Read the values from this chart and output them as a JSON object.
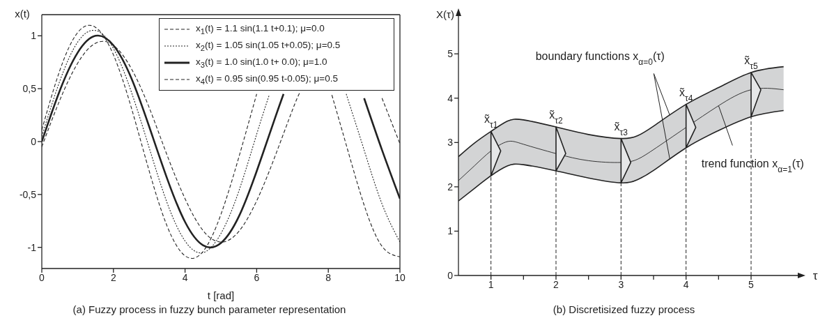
{
  "chart_data": [
    {
      "type": "line",
      "title": "(a) Fuzzy process in fuzzy bunch parameter representation",
      "xlabel": "t [rad]",
      "ylabel": "x(t)",
      "xlim": [
        0,
        10
      ],
      "xticks": [
        0,
        2,
        4,
        6,
        8,
        10
      ],
      "ylim": [
        -1.2,
        1.2
      ],
      "yticks": [
        -1,
        {
          "value": -0.5,
          "label": "-0,5"
        },
        0,
        {
          "value": 0.5,
          "label": "0,5"
        },
        1
      ],
      "legend": "top right",
      "series": [
        {
          "name": "x$_{1}$(t) = 1.1 sin(1.1 t+0.1); μ=0.0",
          "color": "#222222",
          "line_style": "dashed",
          "x": [
            0,
            0.5,
            1,
            1.5,
            2,
            2.5,
            3,
            3.5,
            4,
            4.5,
            5,
            5.5,
            6,
            7,
            8.1,
            8.5,
            9,
            9.5,
            10
          ],
          "values": [
            0.11,
            0.67,
            1.03,
            1.08,
            0.82,
            0.32,
            -0.28,
            -0.8,
            -1.08,
            -1.04,
            -0.69,
            -0.15,
            0.45,
            null,
            0.44,
            -0.03,
            -0.6,
            -0.99,
            -1.09
          ]
        },
        {
          "name": "x$_{2}$(t) = 1.05 sin(1.05 t+0.05); μ=0.5",
          "color": "#222222",
          "line_style": "dotted",
          "x": [
            0,
            0.5,
            1,
            1.5,
            2,
            2.5,
            3,
            3.5,
            4,
            4.5,
            5,
            5.5,
            6,
            6.35,
            7.5,
            8.5,
            9,
            9.5,
            10
          ],
          "values": [
            0.05,
            0.57,
            0.94,
            1.05,
            0.88,
            0.47,
            -0.06,
            -0.58,
            -0.94,
            -1.05,
            -0.87,
            -0.47,
            0.07,
            0.44,
            null,
            0.45,
            -0.08,
            -0.59,
            -0.95
          ]
        },
        {
          "name": "x$_{3}$(t) = 1.0 sin(1.0 t+ 0.0); μ=1.0",
          "color": "#222222",
          "line_style": "solid",
          "x": [
            0,
            0.5,
            1,
            1.5,
            2,
            2.5,
            3,
            3.5,
            4,
            4.5,
            5,
            5.5,
            6,
            6.5,
            6.75,
            7.75,
            9,
            9.5,
            10
          ],
          "values": [
            0,
            0.48,
            0.84,
            1.0,
            0.91,
            0.6,
            0.14,
            -0.35,
            -0.76,
            -0.98,
            -0.96,
            -0.71,
            -0.28,
            0.21,
            0.45,
            null,
            0.41,
            -0.08,
            -0.54
          ]
        },
        {
          "name": "x$_{4}$(t) = 0.95 sin(0.95 t-0.05); μ=0.5",
          "color": "#222222",
          "line_style": "dashed",
          "x": [
            0,
            0.5,
            1,
            1.5,
            2,
            2.5,
            3,
            3.5,
            4,
            4.5,
            5,
            5.5,
            6,
            6.5,
            7,
            7.2,
            8,
            9.5,
            10
          ],
          "values": [
            -0.05,
            0.39,
            0.74,
            0.93,
            0.91,
            0.69,
            0.32,
            -0.13,
            -0.54,
            -0.84,
            -0.95,
            -0.85,
            -0.56,
            -0.15,
            0.3,
            0.46,
            null,
            0.41,
            -0.02
          ]
        }
      ]
    },
    {
      "type": "line",
      "title": "(b) Discretisized fuzzy process",
      "xlabel": "τ",
      "ylabel": "X(τ)",
      "xlim": [
        0.5,
        5.75
      ],
      "xticks": [
        1,
        {
          "value": 1.5,
          "label": null
        },
        2,
        {
          "value": 2.5,
          "label": null
        },
        3,
        {
          "value": 3.5,
          "label": null
        },
        4,
        {
          "value": 4.5,
          "label": null
        },
        5
      ],
      "ylim": [
        0,
        5.9
      ],
      "yticks": [
        0,
        1,
        2,
        3,
        4,
        5
      ],
      "series": [
        {
          "color": "#222222",
          "x": [
            0.5,
            0.75,
            1,
            1.25,
            1.5,
            2,
            2.5,
            3,
            3.25,
            3.5,
            4,
            4.5,
            5,
            5.5
          ],
          "values": [
            2.14,
            2.48,
            2.81,
            3.02,
            2.96,
            2.75,
            2.59,
            2.55,
            2.62,
            2.84,
            3.34,
            3.83,
            4.19,
            4.19
          ],
          "lower": [
            1.68,
            1.97,
            2.25,
            2.47,
            2.5,
            2.36,
            2.2,
            2.09,
            2.16,
            2.37,
            2.88,
            3.27,
            3.58,
            3.72
          ],
          "upper": [
            2.68,
            2.99,
            3.25,
            3.48,
            3.51,
            3.35,
            3.18,
            3.09,
            3.15,
            3.37,
            3.86,
            4.24,
            4.58,
            4.71
          ]
        },
        {
          "color": "#222222",
          "x": [
            0.5,
            0.75,
            1,
            1.25,
            1.5,
            2,
            2.5,
            3,
            3.25,
            3.5,
            4,
            4.5,
            5,
            5.5
          ],
          "values": [
            2.68,
            2.99,
            3.25,
            3.48,
            3.51,
            3.35,
            3.18,
            3.09,
            3.15,
            3.37,
            3.86,
            4.24,
            4.58,
            4.71
          ]
        },
        {
          "color": "#222222",
          "x": [
            0.5,
            0.75,
            1,
            1.25,
            1.5,
            2,
            2.5,
            3,
            3.25,
            3.5,
            4,
            4.5,
            5,
            5.5
          ],
          "values": [
            1.68,
            1.97,
            2.25,
            2.47,
            2.5,
            2.36,
            2.2,
            2.09,
            2.16,
            2.37,
            2.88,
            3.27,
            3.58,
            3.72
          ]
        }
      ],
      "ref_lines": [
        {
          "axis": "x",
          "value": 1,
          "line_style": "dashed"
        },
        {
          "axis": "x",
          "value": 2,
          "line_style": "dashed"
        },
        {
          "axis": "x",
          "value": 3,
          "line_style": "dashed"
        },
        {
          "axis": "x",
          "value": 4,
          "line_style": "dashed"
        },
        {
          "axis": "x",
          "value": 5,
          "line_style": "dashed"
        }
      ],
      "annotations": [
        {
          "text": "x̃$_{τ1}$",
          "x": 1,
          "y": 3.25
        },
        {
          "text": "x̃$_{τ2}$",
          "x": 2,
          "y": 3.35
        },
        {
          "text": "x̃$_{τ3}$",
          "x": 3,
          "y": 3.09
        },
        {
          "text": "x̃$_{τ4}$",
          "x": 4,
          "y": 3.86
        },
        {
          "text": "x̃$_{τ5}$",
          "x": 5,
          "y": 4.58
        },
        {
          "text": "boundary functions x$_{α=0}$(τ)",
          "x": 3.75,
          "y": 3.61
        },
        {
          "text": "trend function x$_{α=1}$(τ)",
          "x": 4.5,
          "y": 3.83
        }
      ]
    }
  ]
}
